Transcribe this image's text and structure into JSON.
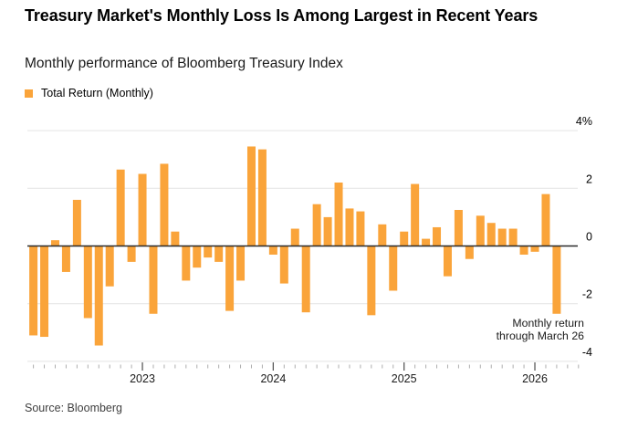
{
  "header": {
    "title": "Treasury Market's Monthly Loss Is Among Largest in Recent Years",
    "subtitle": "Monthly performance of Bloomberg Treasury Index"
  },
  "legend": {
    "items": [
      {
        "label": "Total Return (Monthly)",
        "color": "#FAA43A"
      }
    ]
  },
  "annotation": {
    "line1": "Monthly return",
    "line2": "through March 26"
  },
  "source": "Source: Bloomberg",
  "colors": {
    "bar": "#FAA43A",
    "zero_line": "#2a2a2a",
    "gridline": "#e4e4e4",
    "tick_minor": "#adadad",
    "tick_year": "#5a5a5a",
    "text": "#000000"
  },
  "chart_data": {
    "type": "bar",
    "title": "Treasury Market's Monthly Loss Is Among Largest in Recent Years",
    "subtitle": "Monthly performance of Bloomberg Treasury Index",
    "series_name": "Total Return (Monthly)",
    "unit": "%",
    "bar_color": "#FAA43A",
    "grid": "horizontal",
    "legend_position": "top-left",
    "ylim": [
      -4.5,
      4.4
    ],
    "yticks": [
      {
        "value": 4,
        "label": "4%"
      },
      {
        "value": 2,
        "label": "2"
      },
      {
        "value": 0,
        "label": "0"
      },
      {
        "value": -2,
        "label": "-2"
      },
      {
        "value": -4,
        "label": "-4"
      }
    ],
    "year_ticks": [
      {
        "label": "2023",
        "month_index": 10
      },
      {
        "label": "2024",
        "month_index": 22
      },
      {
        "label": "2025",
        "month_index": 34
      },
      {
        "label": "2026",
        "month_index": 46
      }
    ],
    "annotation": "Monthly return through March 26",
    "x": [
      "2022-03",
      "2022-04",
      "2022-05",
      "2022-06",
      "2022-07",
      "2022-08",
      "2022-09",
      "2022-10",
      "2022-11",
      "2022-12",
      "2023-01",
      "2023-02",
      "2023-03",
      "2023-04",
      "2023-05",
      "2023-06",
      "2023-07",
      "2023-08",
      "2023-09",
      "2023-10",
      "2023-11",
      "2023-12",
      "2024-01",
      "2024-02",
      "2024-03",
      "2024-04",
      "2024-05",
      "2024-06",
      "2024-07",
      "2024-08",
      "2024-09",
      "2024-10",
      "2024-11",
      "2024-12",
      "2025-01",
      "2025-02",
      "2025-03",
      "2025-04",
      "2025-05",
      "2025-06",
      "2025-07",
      "2025-08",
      "2025-09",
      "2025-10",
      "2025-11",
      "2025-12",
      "2026-01",
      "2026-02",
      "2026-03"
    ],
    "values": [
      -3.1,
      -3.15,
      0.2,
      -0.9,
      1.6,
      -2.5,
      -3.45,
      -1.4,
      2.65,
      -0.55,
      2.5,
      -2.35,
      2.85,
      0.5,
      -1.2,
      -0.75,
      -0.4,
      -0.55,
      -2.25,
      -1.2,
      3.45,
      3.35,
      -0.3,
      -1.3,
      0.6,
      -2.3,
      1.45,
      1.0,
      2.2,
      1.3,
      1.2,
      -2.4,
      0.75,
      -1.55,
      0.5,
      2.15,
      0.25,
      0.65,
      -1.05,
      1.25,
      -0.45,
      1.05,
      0.8,
      0.6,
      0.6,
      -0.3,
      -0.2,
      1.8,
      -2.35
    ]
  }
}
